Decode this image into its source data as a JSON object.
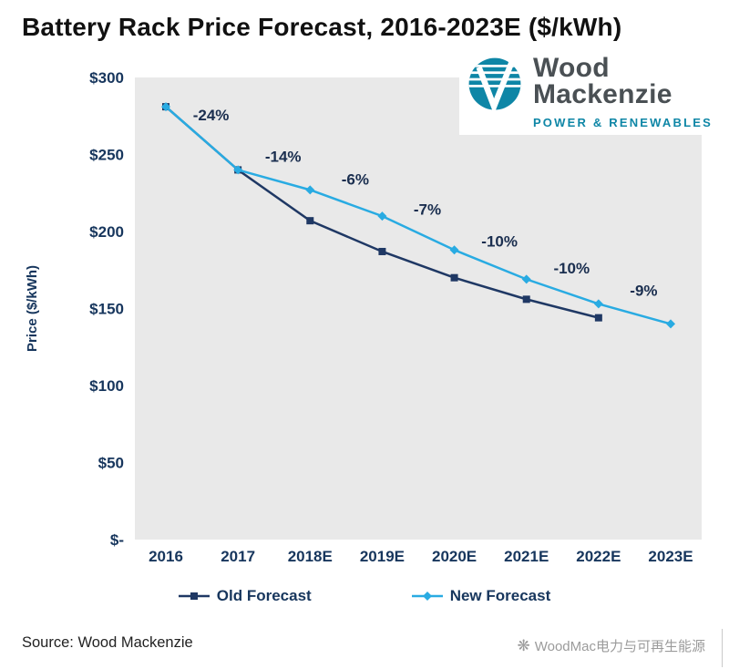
{
  "title": "Battery Rack Price Forecast, 2016-2023E ($/kWh)",
  "logo": {
    "name_line1": "Wood",
    "name_line2": "Mackenzie",
    "tagline": "POWER & RENEWABLES",
    "brand_teal": "#0e86a6",
    "brand_gray": "#4a5054"
  },
  "chart_data": {
    "type": "line",
    "categories": [
      "2016",
      "2017",
      "2018E",
      "2019E",
      "2020E",
      "2021E",
      "2022E",
      "2023E"
    ],
    "series": [
      {
        "name": "Old Forecast",
        "color": "#1f3864",
        "marker": "square",
        "values": [
          281,
          240,
          207,
          187,
          170,
          156,
          144,
          null
        ]
      },
      {
        "name": "New Forecast",
        "color": "#29abe2",
        "marker": "diamond",
        "values": [
          281,
          240,
          227,
          210,
          188,
          169,
          153,
          140
        ]
      }
    ],
    "annotations": [
      "-24%",
      "-14%",
      "-6%",
      "-7%",
      "-10%",
      "-10%",
      "-9%"
    ],
    "title": "Battery Rack Price Forecast, 2016-2023E ($/kWh)",
    "xlabel": "",
    "ylabel": "Price ($/kWh)",
    "ylim": [
      0,
      300
    ],
    "ytick_values": [
      300,
      250,
      200,
      150,
      100,
      50,
      0
    ],
    "ytick_labels": [
      "$300",
      "$250",
      "$200",
      "$150",
      "$100",
      "$50",
      "$-"
    ],
    "grid": false,
    "legend_position": "bottom",
    "plot_bg": "#e9e9e9"
  },
  "footer": {
    "source": "Source: Wood Mackenzie",
    "icon_glyph": "❋",
    "account": "WoodMac电力与可再生能源"
  }
}
